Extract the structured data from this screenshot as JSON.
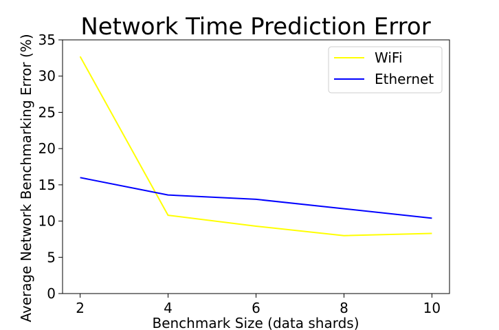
{
  "chart_data": {
    "type": "line",
    "title": "Network Time Prediction Error",
    "xlabel": "Benchmark Size (data shards)",
    "ylabel": "Average Network Benchmarking Error (%)",
    "x": [
      2,
      4,
      6,
      8,
      10
    ],
    "xlim": [
      1.6,
      10.4
    ],
    "ylim": [
      0,
      35
    ],
    "xticks": [
      "2",
      "4",
      "6",
      "8",
      "10"
    ],
    "yticks": [
      "0",
      "5",
      "10",
      "15",
      "20",
      "25",
      "30",
      "35"
    ],
    "grid": false,
    "legend_position": "top-right",
    "series": [
      {
        "name": "WiFi",
        "color": "#ffff00",
        "values": [
          32.7,
          10.8,
          9.3,
          8.0,
          8.3
        ]
      },
      {
        "name": "Ethernet",
        "color": "#0000ff",
        "values": [
          16.0,
          13.6,
          13.0,
          11.7,
          10.4
        ]
      }
    ]
  }
}
